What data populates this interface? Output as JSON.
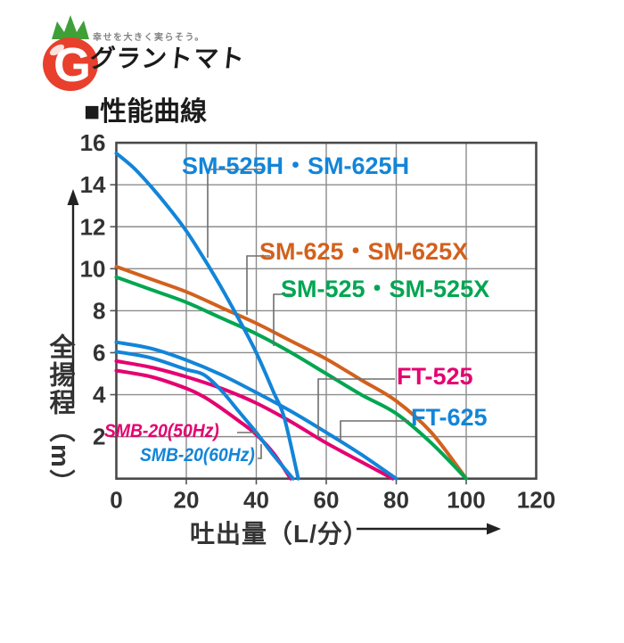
{
  "logo": {
    "tagline": "幸せを大きく実らそう。",
    "brand": "グラントマト",
    "g_letter": "G",
    "tomato_red": "#e8402d",
    "crown_green": "#3fa037"
  },
  "title": "■性能曲線",
  "chart_data": {
    "type": "line",
    "title": "性能曲線",
    "xlabel": "吐出量（L/分）",
    "ylabel": "全揚程（m）",
    "xlim": [
      0,
      120
    ],
    "ylim": [
      0,
      16
    ],
    "x_ticks": [
      0,
      20,
      40,
      60,
      80,
      100,
      120
    ],
    "y_ticks": [
      2,
      4,
      6,
      8,
      10,
      12,
      14,
      16
    ],
    "grid": true,
    "grid_color": "#8c8c8c",
    "border_color": "#4a4a4a",
    "tick_text_color": "#333333",
    "legend_position": "inline-labels",
    "series": [
      {
        "name": "SM-525H・SM-625H",
        "color": "#1285d8",
        "points": [
          [
            0,
            15.5
          ],
          [
            5,
            14.8
          ],
          [
            10,
            13.9
          ],
          [
            15,
            12.9
          ],
          [
            20,
            11.8
          ],
          [
            25,
            10.5
          ],
          [
            30,
            9.1
          ],
          [
            35,
            7.6
          ],
          [
            40,
            6.0
          ],
          [
            45,
            4.1
          ],
          [
            48,
            2.9
          ],
          [
            52,
            0
          ]
        ]
      },
      {
        "name": "SM-625・SM-625X",
        "color": "#d2611d",
        "points": [
          [
            0,
            10.1
          ],
          [
            10,
            9.5
          ],
          [
            20,
            8.9
          ],
          [
            30,
            8.15
          ],
          [
            40,
            7.4
          ],
          [
            50,
            6.55
          ],
          [
            60,
            5.7
          ],
          [
            70,
            4.7
          ],
          [
            80,
            3.7
          ],
          [
            90,
            2.2
          ],
          [
            100,
            0
          ]
        ]
      },
      {
        "name": "SM-525・SM-525X",
        "color": "#00a651",
        "points": [
          [
            0,
            9.6
          ],
          [
            10,
            9.0
          ],
          [
            20,
            8.4
          ],
          [
            30,
            7.65
          ],
          [
            40,
            6.9
          ],
          [
            50,
            6.0
          ],
          [
            60,
            5.0
          ],
          [
            70,
            4.0
          ],
          [
            80,
            3.1
          ],
          [
            90,
            1.7
          ],
          [
            100,
            0
          ]
        ]
      },
      {
        "name": "FT-525",
        "color": "#e50070",
        "points": [
          [
            0,
            5.6
          ],
          [
            10,
            5.3
          ],
          [
            20,
            4.85
          ],
          [
            30,
            4.3
          ],
          [
            40,
            3.6
          ],
          [
            50,
            2.7
          ],
          [
            60,
            1.7
          ],
          [
            70,
            0.8
          ],
          [
            79,
            0
          ]
        ]
      },
      {
        "name": "FT-625",
        "color": "#1285d8",
        "points": [
          [
            0,
            6.5
          ],
          [
            10,
            6.2
          ],
          [
            20,
            5.65
          ],
          [
            30,
            4.95
          ],
          [
            40,
            4.1
          ],
          [
            50,
            3.2
          ],
          [
            60,
            2.2
          ],
          [
            70,
            1.15
          ],
          [
            80,
            0
          ]
        ]
      },
      {
        "name": "SMB-20(50Hz)",
        "color": "#e50070",
        "points": [
          [
            0,
            5.15
          ],
          [
            10,
            4.85
          ],
          [
            20,
            4.3
          ],
          [
            25,
            3.9
          ],
          [
            30,
            3.35
          ],
          [
            35,
            2.75
          ],
          [
            40,
            2.1
          ],
          [
            45,
            1.2
          ],
          [
            49.8,
            0
          ]
        ]
      },
      {
        "name": "SMB-20(60Hz)",
        "color": "#1285d8",
        "points": [
          [
            0,
            6.05
          ],
          [
            10,
            5.75
          ],
          [
            20,
            5.2
          ],
          [
            25,
            4.95
          ],
          [
            30,
            4.2
          ],
          [
            35,
            3.2
          ],
          [
            40,
            2.2
          ],
          [
            45,
            1.1
          ],
          [
            50.5,
            0
          ]
        ]
      }
    ]
  }
}
